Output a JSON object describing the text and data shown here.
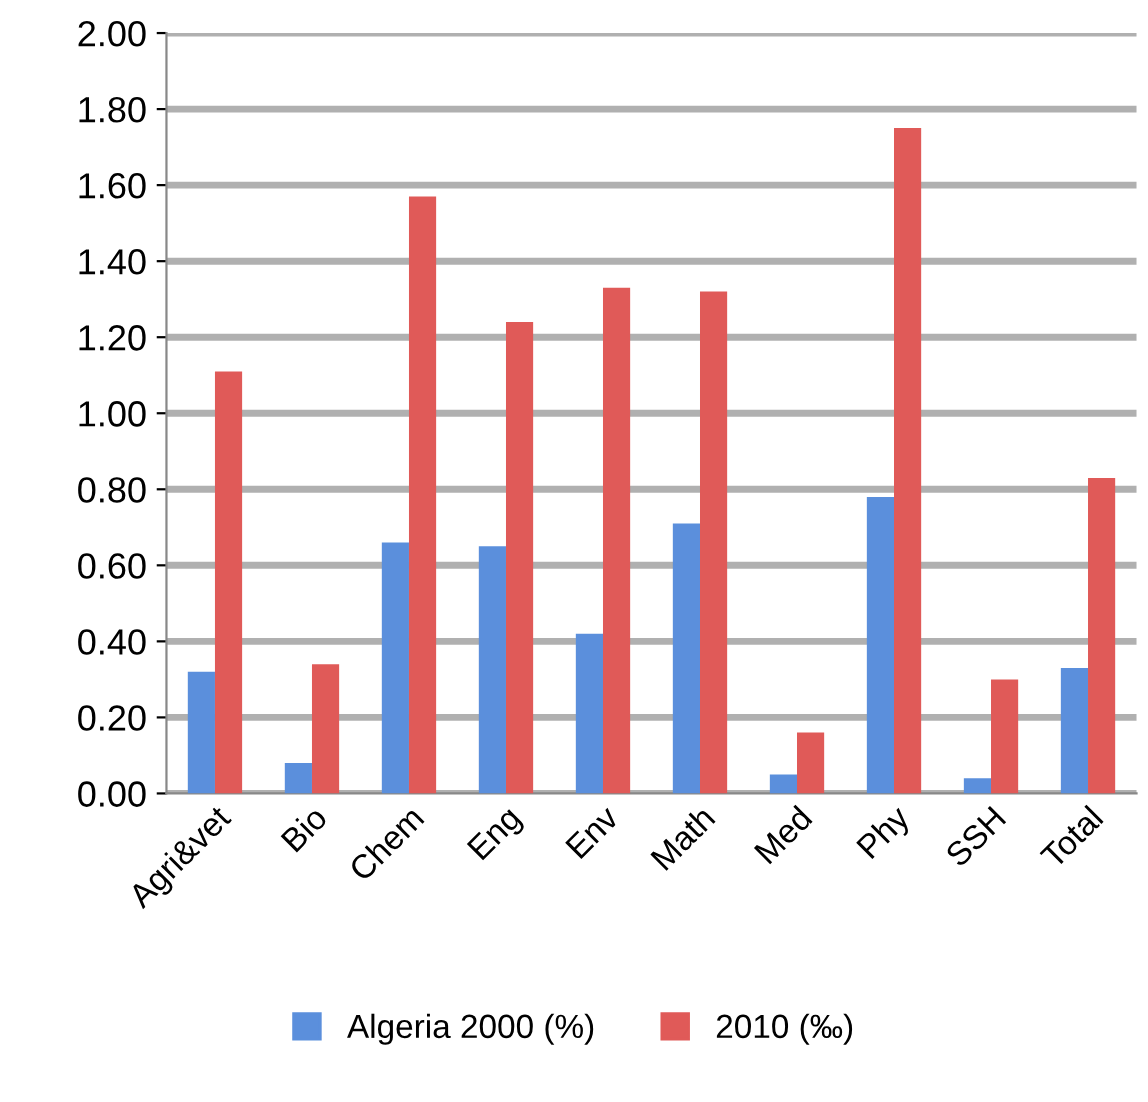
{
  "chart_data": {
    "type": "bar",
    "categories": [
      "Agri&vet",
      "Bio",
      "Chem",
      "Eng",
      "Env",
      "Math",
      "Med",
      "Phy",
      "SSH",
      "Total"
    ],
    "series": [
      {
        "name": "Algeria 2000 (%)",
        "color": "#5b8fdc",
        "values": [
          0.32,
          0.08,
          0.66,
          0.65,
          0.42,
          0.71,
          0.05,
          0.78,
          0.04,
          0.33
        ]
      },
      {
        "name": "2010 (‰)",
        "color": "#e05a58",
        "values": [
          1.11,
          0.34,
          1.57,
          1.24,
          1.33,
          1.32,
          0.16,
          1.75,
          0.3,
          0.83
        ]
      }
    ],
    "ylim": [
      0,
      2.0
    ],
    "yticks": [
      {
        "value": 0,
        "label": "0.00"
      },
      {
        "value": 0.2,
        "label": "0.20"
      },
      {
        "value": 0.4,
        "label": "0.40"
      },
      {
        "value": 0.6,
        "label": "0.60"
      },
      {
        "value": 0.8,
        "label": "0.80"
      },
      {
        "value": 1.0,
        "label": "1.00"
      },
      {
        "value": 1.2,
        "label": "1.20"
      },
      {
        "value": 1.4,
        "label": "1.40"
      },
      {
        "value": 1.6,
        "label": "1.60"
      },
      {
        "value": 1.8,
        "label": "1.80"
      },
      {
        "value": 2.0,
        "label": "2.00"
      }
    ],
    "grid": "y",
    "legend": "bottom"
  }
}
